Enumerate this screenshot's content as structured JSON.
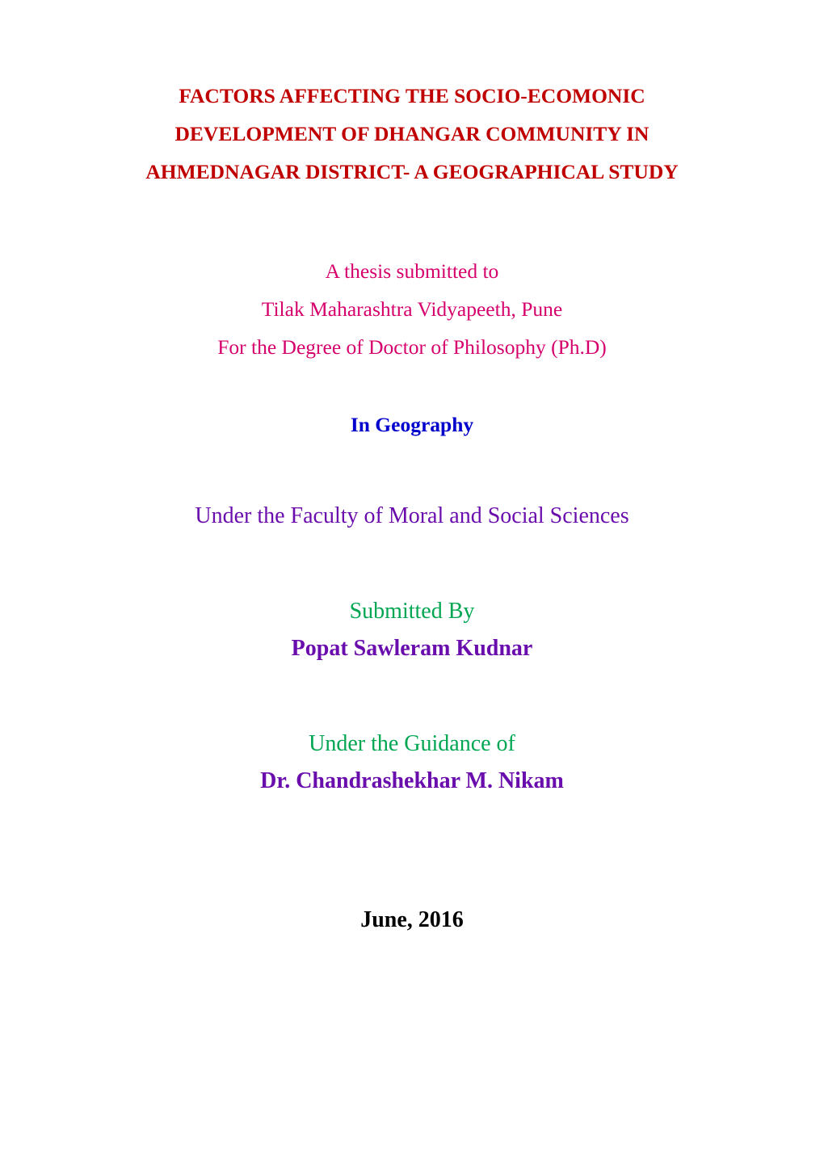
{
  "colors": {
    "title": "#c00000",
    "submitted_to": "#d6006c",
    "subject": "#0000cc",
    "faculty": "#6a0dad",
    "label_green": "#00a651",
    "name_purple": "#6a0dad",
    "date_black": "#000000",
    "background": "#ffffff"
  },
  "typography": {
    "title_fontsize": 25.5,
    "body_fontsize": 25.5,
    "large_fontsize": 28,
    "font_family": "Times New Roman"
  },
  "title": {
    "line1": "FACTORS AFFECTING THE SOCIO-ECOMONIC",
    "line2": "DEVELOPMENT OF DHANGAR COMMUNITY IN",
    "line3": "AHMEDNAGAR DISTRICT- A GEOGRAPHICAL STUDY"
  },
  "submitted_to": {
    "line1": "A thesis submitted to",
    "line2": "Tilak Maharashtra Vidyapeeth, Pune",
    "line3": "For the Degree of Doctor of Philosophy (Ph.D)"
  },
  "subject": "In Geography",
  "faculty": "Under the Faculty of Moral and Social Sciences",
  "submitted_by": {
    "label": "Submitted By",
    "name": "Popat Sawleram Kudnar"
  },
  "guidance": {
    "label": "Under the Guidance of",
    "name": "Dr. Chandrashekhar M. Nikam"
  },
  "date": "June, 2016"
}
